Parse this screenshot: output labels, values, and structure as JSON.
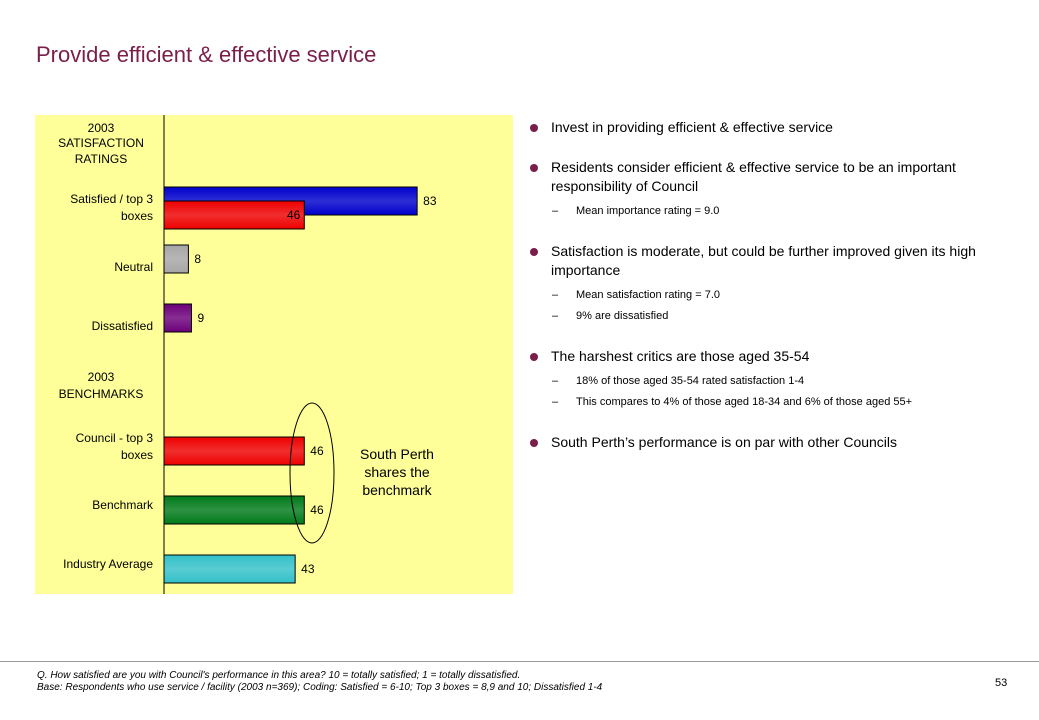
{
  "slide": {
    "title": "Provide efficient & effective service",
    "page_number": "53",
    "footnote_q": "Q. How satisfied are you with Council's performance in this area?  10 = totally satisfied; 1 = totally dissatisfied.",
    "footnote_base": "Base: Respondents who use service / facility (2003 n=369);  Coding: Satisfied = 6-10; Top 3 boxes = 8,9 and 10; Dissatisfied 1-4"
  },
  "colors": {
    "title": "#7a1e4a",
    "panel": "#ffff99",
    "blue": "#0000cc",
    "red": "#ee0000",
    "grey": "#a6a6a6",
    "purple": "#6b007a",
    "green": "#007a1a",
    "teal": "#33c1c8"
  },
  "chart_data": {
    "type": "bar",
    "orientation": "horizontal",
    "xlim": [
      0,
      100
    ],
    "section_headers": [
      {
        "label": "2003 SATISFACTION RATINGS",
        "lines": [
          "2003",
          "SATISFACTION",
          "RATINGS"
        ]
      },
      {
        "label": "2003 BENCHMARKS",
        "lines": [
          "2003",
          "BENCHMARKS"
        ]
      }
    ],
    "categories": [
      {
        "label": "Satisfied / top 3 boxes",
        "lines": [
          "Satisfied / top 3",
          "boxes"
        ]
      },
      {
        "label": "Neutral",
        "lines": [
          "Neutral"
        ]
      },
      {
        "label": "Dissatisfied",
        "lines": [
          "Dissatisfied"
        ]
      },
      {
        "label": "Council - top 3 boxes",
        "lines": [
          "Council - top 3",
          "boxes"
        ]
      },
      {
        "label": "Benchmark",
        "lines": [
          "Benchmark"
        ]
      },
      {
        "label": "Industry Average",
        "lines": [
          "Industry Average"
        ]
      }
    ],
    "bars": [
      {
        "category": "Satisfied / top 3 boxes",
        "value": 83,
        "color": "#0000cc",
        "label": "83"
      },
      {
        "category": "Satisfied / top 3 boxes",
        "value": 46,
        "color": "#ee0000",
        "label": "46"
      },
      {
        "category": "Neutral",
        "value": 8,
        "color": "#a6a6a6",
        "label": "8"
      },
      {
        "category": "Dissatisfied",
        "value": 9,
        "color": "#6b007a",
        "label": "9"
      },
      {
        "category": "Council - top 3 boxes",
        "value": 46,
        "color": "#ee0000",
        "label": "46"
      },
      {
        "category": "Benchmark",
        "value": 46,
        "color": "#007a1a",
        "label": "46"
      },
      {
        "category": "Industry Average",
        "value": 43,
        "color": "#33c1c8",
        "label": "43"
      }
    ],
    "annotation": {
      "lines": [
        "South Perth",
        "shares the",
        "benchmark"
      ]
    }
  },
  "bullets": [
    {
      "text": "Invest in providing efficient & effective service",
      "subs": []
    },
    {
      "text": "Residents consider efficient & effective service to be an important responsibility of Council",
      "subs": [
        "Mean importance rating = 9.0"
      ]
    },
    {
      "text": "Satisfaction is moderate, but could be further improved given its high importance",
      "subs": [
        "Mean satisfaction rating = 7.0",
        "9% are dissatisfied"
      ]
    },
    {
      "text": "The harshest critics are those aged 35-54",
      "subs": [
        "18% of those aged 35-54 rated satisfaction 1-4",
        "This compares to 4% of those aged 18-34 and 6% of those aged 55+"
      ]
    },
    {
      "text": "South Perth’s performance is on par with other Councils",
      "subs": []
    }
  ]
}
